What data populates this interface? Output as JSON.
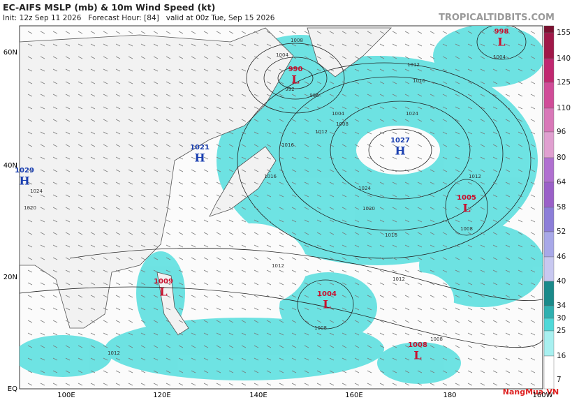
{
  "header": {
    "title": "EC-AIFS MSLP (mb) & 10m Wind Speed (kt)",
    "subtitle": "Init: 12z Sep 11 2026   Forecast Hour: [84]   valid at 00z Tue, Sep 15 2026",
    "credit": "TROPICALTIDBITS.COM"
  },
  "map": {
    "lat_labels": [
      "60N",
      "40N",
      "20N",
      "EQ"
    ],
    "lon_labels": [
      "100E",
      "120E",
      "140E",
      "160E",
      "180",
      "160W"
    ],
    "centers": [
      {
        "pressure": 998,
        "symbol": "L"
      },
      {
        "pressure": 990,
        "symbol": "L"
      },
      {
        "pressure": 1027,
        "symbol": "H"
      },
      {
        "pressure": 1021,
        "symbol": "H"
      },
      {
        "pressure": 1029,
        "symbol": "H"
      },
      {
        "pressure": 1005,
        "symbol": "L"
      },
      {
        "pressure": 1009,
        "symbol": "L"
      },
      {
        "pressure": 1004,
        "symbol": "L"
      },
      {
        "pressure": 1008,
        "symbol": "L"
      }
    ],
    "isobar_labels": [
      1008,
      1004,
      992,
      996,
      1004,
      1008,
      1012,
      1016,
      1016,
      1024,
      1020,
      1016,
      1012,
      1012,
      1008,
      1004,
      1012,
      1016,
      1024,
      1012,
      1008,
      1008,
      1012,
      1020,
      1024
    ]
  },
  "colorbar": {
    "labels": [
      155,
      140,
      125,
      110,
      96,
      80,
      64,
      58,
      52,
      46,
      40,
      34,
      30,
      25,
      16,
      7
    ]
  },
  "watermark": "NangMua.VN"
}
